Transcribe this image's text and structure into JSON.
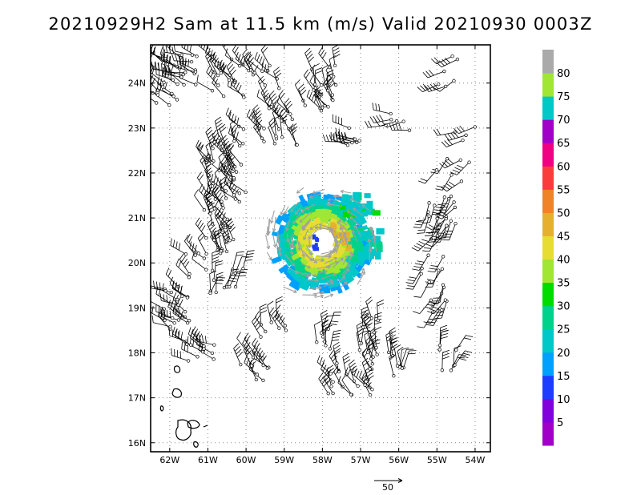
{
  "title": "20210929H2 Sam at 11.5 km (m/s) Valid 20210930 0003Z",
  "chart_data": {
    "type": "vector_field",
    "title": "20210929H2 Sam at 11.5 km (m/s) Valid 20210930 0003Z",
    "xlim": [
      -62.5,
      -53.6
    ],
    "ylim": [
      15.8,
      24.85
    ],
    "x_ticks": [
      {
        "value": -62,
        "label": "62W"
      },
      {
        "value": -61,
        "label": "61W"
      },
      {
        "value": -60,
        "label": "60W"
      },
      {
        "value": -59,
        "label": "59W"
      },
      {
        "value": -58,
        "label": "58W"
      },
      {
        "value": -57,
        "label": "57W"
      },
      {
        "value": -56,
        "label": "56W"
      },
      {
        "value": -55,
        "label": "55W"
      },
      {
        "value": -54,
        "label": "54W"
      }
    ],
    "y_ticks": [
      {
        "value": 16,
        "label": "16N"
      },
      {
        "value": 17,
        "label": "17N"
      },
      {
        "value": 18,
        "label": "18N"
      },
      {
        "value": 19,
        "label": "19N"
      },
      {
        "value": 20,
        "label": "20N"
      },
      {
        "value": 21,
        "label": "21N"
      },
      {
        "value": 22,
        "label": "22N"
      },
      {
        "value": 23,
        "label": "23N"
      },
      {
        "value": 24,
        "label": "24N"
      }
    ],
    "grid": "dotted",
    "storm_center": {
      "lon": -58.0,
      "lat": 20.45
    },
    "colorbar": {
      "levels": [
        "5",
        "10",
        "15",
        "20",
        "25",
        "30",
        "35",
        "40",
        "45",
        "50",
        "55",
        "60",
        "65",
        "70",
        "75",
        "80"
      ],
      "colors": [
        "#a000c8",
        "#8200dc",
        "#1e3cff",
        "#00a0ff",
        "#00c8c8",
        "#00d28c",
        "#00dc00",
        "#a0e632",
        "#e6dc32",
        "#e6af2d",
        "#f08228",
        "#fa3c3c",
        "#f00082",
        "#a000c8",
        "#00c8c8",
        "#a0e632",
        "#aaaaaa"
      ]
    },
    "reference_vector": {
      "label": "50",
      "value": 50
    },
    "flight_track": [
      [
        -58.72,
        21.35
      ],
      [
        -58.0,
        20.9
      ],
      [
        -57.45,
        20.25
      ],
      [
        -57.6,
        19.75
      ],
      [
        -58.0,
        19.6
      ],
      [
        -58.5,
        19.9
      ],
      [
        -58.8,
        20.4
      ],
      [
        -58.5,
        21.05
      ],
      [
        -57.8,
        21.25
      ],
      [
        -57.3,
        20.8
      ]
    ],
    "barb_clusters": [
      {
        "lon": -62.1,
        "lat": 24.0,
        "dx": 0.5,
        "dy": 0.6,
        "n": 22,
        "dir": 300
      },
      {
        "lon": -61.5,
        "lat": 24.3,
        "dx": 0.5,
        "dy": 0.45,
        "n": 14,
        "dir": 290
      },
      {
        "lon": -60.4,
        "lat": 24.2,
        "dx": 0.6,
        "dy": 0.5,
        "n": 16,
        "dir": 315
      },
      {
        "lon": -59.6,
        "lat": 23.8,
        "dx": 0.5,
        "dy": 0.6,
        "n": 14,
        "dir": 320
      },
      {
        "lon": -58.5,
        "lat": 23.5,
        "dx": 0.8,
        "dy": 0.4,
        "n": 18,
        "dir": 330
      },
      {
        "lon": -57.8,
        "lat": 24.1,
        "dx": 0.5,
        "dy": 0.3,
        "n": 10,
        "dir": 340
      },
      {
        "lon": -56.0,
        "lat": 23.2,
        "dx": 0.35,
        "dy": 0.3,
        "n": 6,
        "dir": 270
      },
      {
        "lon": -54.8,
        "lat": 24.3,
        "dx": 0.4,
        "dy": 0.4,
        "n": 6,
        "dir": 250
      },
      {
        "lon": -59.9,
        "lat": 23.0,
        "dx": 0.4,
        "dy": 0.4,
        "n": 9,
        "dir": 320
      },
      {
        "lon": -60.7,
        "lat": 21.5,
        "dx": 0.4,
        "dy": 1.3,
        "n": 50,
        "dir": 330
      },
      {
        "lon": -61.8,
        "lat": 19.0,
        "dx": 0.35,
        "dy": 0.5,
        "n": 22,
        "dir": 300
      },
      {
        "lon": -60.3,
        "lat": 21.8,
        "dx": 0.35,
        "dy": 0.5,
        "n": 14,
        "dir": 320
      },
      {
        "lon": -59.0,
        "lat": 22.7,
        "dx": 0.35,
        "dy": 0.35,
        "n": 8,
        "dir": 340
      },
      {
        "lon": -61.3,
        "lat": 20.0,
        "dx": 0.3,
        "dy": 0.35,
        "n": 8,
        "dir": 315
      },
      {
        "lon": -60.5,
        "lat": 19.6,
        "dx": 0.45,
        "dy": 0.3,
        "n": 12,
        "dir": 10
      },
      {
        "lon": -61.2,
        "lat": 18.1,
        "dx": 0.4,
        "dy": 0.3,
        "n": 12,
        "dir": 300
      },
      {
        "lon": -59.7,
        "lat": 17.7,
        "dx": 0.45,
        "dy": 0.35,
        "n": 12,
        "dir": 320
      },
      {
        "lon": -59.3,
        "lat": 18.6,
        "dx": 0.4,
        "dy": 0.3,
        "n": 8,
        "dir": 340
      },
      {
        "lon": -57.9,
        "lat": 18.3,
        "dx": 0.3,
        "dy": 0.25,
        "n": 8,
        "dir": 10
      },
      {
        "lon": -57.3,
        "lat": 17.4,
        "dx": 0.65,
        "dy": 0.4,
        "n": 22,
        "dir": 330
      },
      {
        "lon": -56.8,
        "lat": 18.3,
        "dx": 0.35,
        "dy": 0.5,
        "n": 16,
        "dir": 350
      },
      {
        "lon": -54.7,
        "lat": 17.9,
        "dx": 0.25,
        "dy": 0.3,
        "n": 8,
        "dir": 20
      },
      {
        "lon": -54.9,
        "lat": 21.0,
        "dx": 0.4,
        "dy": 0.5,
        "n": 22,
        "dir": 210
      },
      {
        "lon": -55.1,
        "lat": 19.6,
        "dx": 0.4,
        "dy": 0.7,
        "n": 16,
        "dir": 200
      },
      {
        "lon": -54.6,
        "lat": 22.1,
        "dx": 0.5,
        "dy": 0.3,
        "n": 6,
        "dir": 230
      },
      {
        "lon": -54.3,
        "lat": 22.9,
        "dx": 0.3,
        "dy": 0.2,
        "n": 4,
        "dir": 240
      },
      {
        "lon": -57.2,
        "lat": 22.8,
        "dx": 0.4,
        "dy": 0.25,
        "n": 8,
        "dir": 280
      },
      {
        "lon": -56.1,
        "lat": 17.8,
        "dx": 0.25,
        "dy": 0.4,
        "n": 10,
        "dir": 0
      }
    ]
  }
}
